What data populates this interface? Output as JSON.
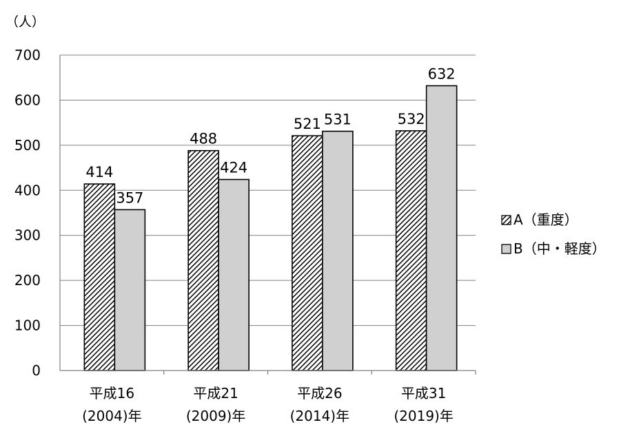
{
  "chart_data": {
    "type": "bar",
    "unit_label": "（人）",
    "categories": [
      [
        "平成16",
        "(2004)年"
      ],
      [
        "平成21",
        "(2009)年"
      ],
      [
        "平成26",
        "(2014)年"
      ],
      [
        "平成31",
        "(2019)年"
      ]
    ],
    "series": [
      {
        "name": "A（重度）",
        "values": [
          414,
          488,
          521,
          532
        ],
        "fill": "hatched",
        "color": "#000000"
      },
      {
        "name": "B（中・軽度）",
        "values": [
          357,
          424,
          531,
          632
        ],
        "fill": "solid",
        "color": "#d0d0d0"
      }
    ],
    "ylim": [
      0,
      700
    ],
    "yticks": [
      0,
      100,
      200,
      300,
      400,
      500,
      600,
      700
    ],
    "grid": true,
    "legend_position": "right"
  }
}
